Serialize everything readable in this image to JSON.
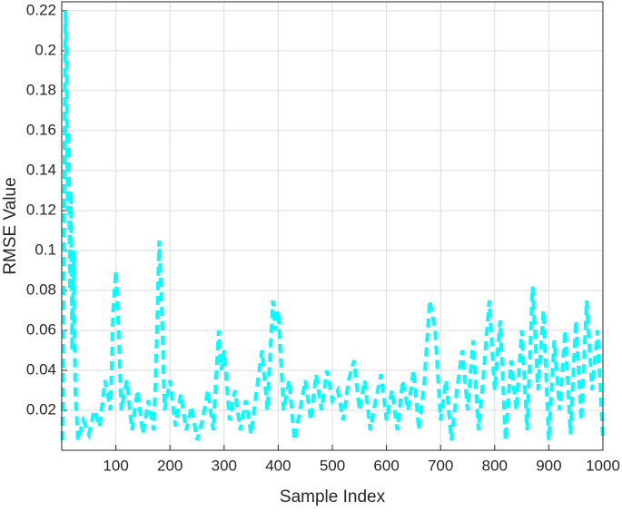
{
  "chart_data": {
    "type": "line",
    "xlabel": "Sample Index",
    "ylabel": "RMSE Value",
    "x": [
      1,
      3,
      5,
      7,
      9,
      11,
      13,
      15,
      17,
      19,
      22,
      25,
      30,
      40,
      50,
      60,
      70,
      80,
      90,
      95,
      100,
      105,
      110,
      120,
      130,
      140,
      150,
      160,
      170,
      175,
      180,
      185,
      190,
      200,
      210,
      220,
      230,
      240,
      250,
      260,
      270,
      280,
      290,
      295,
      300,
      310,
      320,
      330,
      340,
      350,
      360,
      370,
      380,
      390,
      395,
      400,
      410,
      420,
      430,
      440,
      450,
      460,
      470,
      480,
      490,
      500,
      510,
      520,
      530,
      540,
      550,
      560,
      570,
      580,
      590,
      600,
      610,
      620,
      630,
      640,
      650,
      660,
      670,
      680,
      690,
      700,
      710,
      720,
      730,
      740,
      750,
      760,
      770,
      780,
      790,
      800,
      810,
      820,
      830,
      840,
      850,
      860,
      870,
      880,
      890,
      900,
      910,
      920,
      930,
      940,
      950,
      960,
      970,
      980,
      990,
      1000
    ],
    "series": [
      {
        "name": "RMSE",
        "color": "#00ffff",
        "values": [
          0.005,
          0.06,
          0.15,
          0.22,
          0.19,
          0.12,
          0.16,
          0.08,
          0.13,
          0.05,
          0.1,
          0.03,
          0.005,
          0.015,
          0.008,
          0.02,
          0.012,
          0.035,
          0.02,
          0.07,
          0.09,
          0.06,
          0.02,
          0.035,
          0.01,
          0.03,
          0.008,
          0.025,
          0.01,
          0.05,
          0.105,
          0.07,
          0.02,
          0.035,
          0.012,
          0.028,
          0.01,
          0.022,
          0.005,
          0.015,
          0.03,
          0.01,
          0.06,
          0.04,
          0.05,
          0.015,
          0.03,
          0.01,
          0.025,
          0.008,
          0.03,
          0.05,
          0.02,
          0.075,
          0.06,
          0.07,
          0.02,
          0.035,
          0.005,
          0.02,
          0.035,
          0.015,
          0.038,
          0.02,
          0.04,
          0.025,
          0.03,
          0.015,
          0.035,
          0.045,
          0.02,
          0.035,
          0.01,
          0.025,
          0.038,
          0.015,
          0.03,
          0.01,
          0.035,
          0.02,
          0.04,
          0.01,
          0.035,
          0.075,
          0.06,
          0.015,
          0.035,
          0.005,
          0.03,
          0.05,
          0.02,
          0.055,
          0.01,
          0.04,
          0.075,
          0.03,
          0.065,
          0.005,
          0.045,
          0.02,
          0.06,
          0.01,
          0.082,
          0.03,
          0.07,
          0.005,
          0.055,
          0.02,
          0.06,
          0.008,
          0.065,
          0.015,
          0.075,
          0.03,
          0.06,
          0.005
        ]
      }
    ],
    "xlim": [
      0,
      1000
    ],
    "xticks": [
      100,
      200,
      300,
      400,
      500,
      600,
      700,
      800,
      900,
      1000
    ],
    "ylim": [
      0,
      0.2245
    ],
    "yticks": [
      0.02,
      0.04,
      0.06,
      0.08,
      0.1,
      0.12,
      0.14,
      0.16,
      0.18,
      0.2,
      0.22
    ],
    "grid": true
  }
}
